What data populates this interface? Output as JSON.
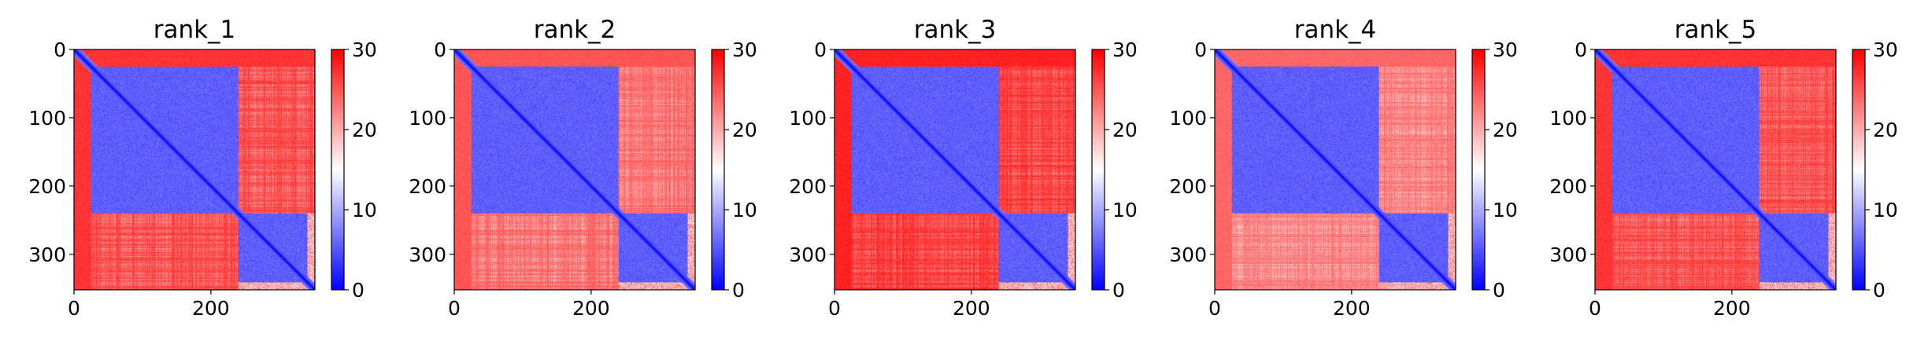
{
  "chart_data": [
    {
      "type": "heatmap",
      "title": "rank_1",
      "matrix_size": 352,
      "xlim": [
        0,
        352
      ],
      "ylim": [
        352,
        0
      ],
      "x_ticks": [
        0,
        200
      ],
      "y_ticks": [
        0,
        100,
        200,
        300
      ],
      "colorbar": {
        "min": 0,
        "max": 30,
        "ticks": [
          0,
          10,
          20,
          30
        ],
        "colors": [
          "#0000ff",
          "#ffffff",
          "#ff0000"
        ]
      },
      "blocks": {
        "boundary": 240,
        "low_value": 4,
        "high_value": 26,
        "n_terminal_tail_end": 25,
        "c_terminal_tail_start": 340
      },
      "variant": 0
    },
    {
      "type": "heatmap",
      "title": "rank_2",
      "matrix_size": 352,
      "xlim": [
        0,
        352
      ],
      "ylim": [
        352,
        0
      ],
      "x_ticks": [
        0,
        200
      ],
      "y_ticks": [
        0,
        100,
        200,
        300
      ],
      "colorbar": {
        "min": 0,
        "max": 30,
        "ticks": [
          0,
          10,
          20,
          30
        ],
        "colors": [
          "#0000ff",
          "#ffffff",
          "#ff0000"
        ]
      },
      "blocks": {
        "boundary": 240,
        "low_value": 4,
        "high_value": 24,
        "n_terminal_tail_end": 25,
        "c_terminal_tail_start": 340
      },
      "variant": 1
    },
    {
      "type": "heatmap",
      "title": "rank_3",
      "matrix_size": 352,
      "xlim": [
        0,
        352
      ],
      "ylim": [
        352,
        0
      ],
      "x_ticks": [
        0,
        200
      ],
      "y_ticks": [
        0,
        100,
        200,
        300
      ],
      "colorbar": {
        "min": 0,
        "max": 30,
        "ticks": [
          0,
          10,
          20,
          30
        ],
        "colors": [
          "#0000ff",
          "#ffffff",
          "#ff0000"
        ]
      },
      "blocks": {
        "boundary": 240,
        "low_value": 4,
        "high_value": 27,
        "n_terminal_tail_end": 25,
        "c_terminal_tail_start": 340
      },
      "variant": 2
    },
    {
      "type": "heatmap",
      "title": "rank_4",
      "matrix_size": 352,
      "xlim": [
        0,
        352
      ],
      "ylim": [
        352,
        0
      ],
      "x_ticks": [
        0,
        200
      ],
      "y_ticks": [
        0,
        100,
        200,
        300
      ],
      "colorbar": {
        "min": 0,
        "max": 30,
        "ticks": [
          0,
          10,
          20,
          30
        ],
        "colors": [
          "#0000ff",
          "#ffffff",
          "#ff0000"
        ]
      },
      "blocks": {
        "boundary": 240,
        "low_value": 4,
        "high_value": 23,
        "n_terminal_tail_end": 25,
        "c_terminal_tail_start": 340
      },
      "variant": 3
    },
    {
      "type": "heatmap",
      "title": "rank_5",
      "matrix_size": 352,
      "xlim": [
        0,
        352
      ],
      "ylim": [
        352,
        0
      ],
      "x_ticks": [
        0,
        200
      ],
      "y_ticks": [
        0,
        100,
        200,
        300
      ],
      "colorbar": {
        "min": 0,
        "max": 30,
        "ticks": [
          0,
          10,
          20,
          30
        ],
        "colors": [
          "#0000ff",
          "#ffffff",
          "#ff0000"
        ]
      },
      "blocks": {
        "boundary": 240,
        "low_value": 4,
        "high_value": 26,
        "n_terminal_tail_end": 25,
        "c_terminal_tail_start": 340
      },
      "variant": 4
    }
  ]
}
